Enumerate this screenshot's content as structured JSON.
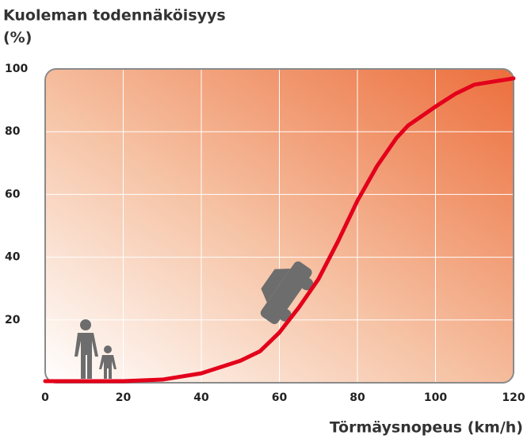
{
  "chart_data": {
    "type": "line",
    "ylabel_lines": [
      "Kuoleman todennäköisyys",
      "(%)"
    ],
    "xlabel": "Törmäysnopeus (km/h)",
    "x": [
      0,
      10,
      20,
      30,
      40,
      50,
      55,
      60,
      65,
      70,
      75,
      80,
      85,
      90,
      93,
      100,
      105,
      110,
      115,
      120
    ],
    "series": [
      {
        "name": "Kuoleman todennäköisyys",
        "color": "#e3001b",
        "values": [
          0.5,
          0.5,
          0.5,
          1,
          3,
          7,
          10,
          16,
          24,
          33,
          45,
          58,
          69,
          78,
          82,
          88,
          92,
          95,
          96,
          97
        ]
      }
    ],
    "xlim": [
      0,
      120
    ],
    "xticks": [
      0,
      20,
      40,
      60,
      80,
      100,
      120
    ],
    "ylim": [
      0,
      100
    ],
    "yticks": [
      20,
      40,
      60,
      80,
      100
    ],
    "grid": true
  }
}
